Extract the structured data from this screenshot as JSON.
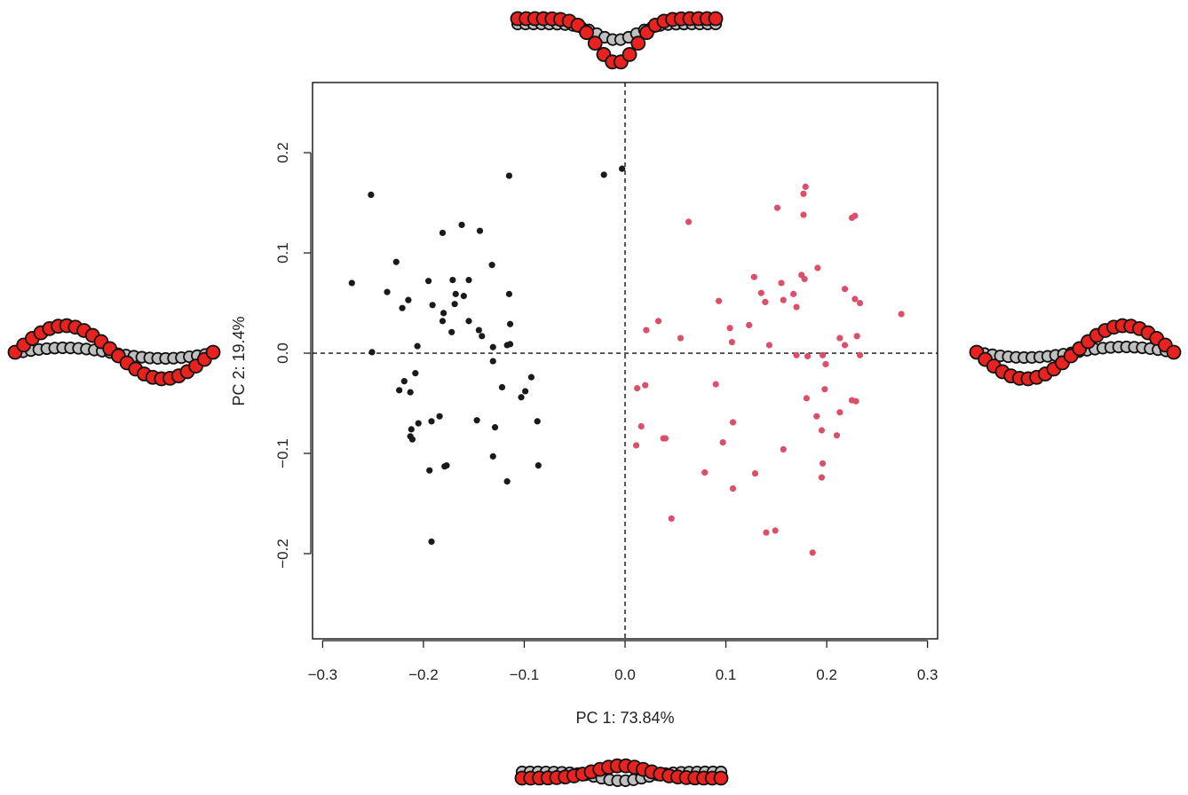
{
  "chart_data": {
    "type": "scatter",
    "title": "",
    "xlabel": "PC 1: 73.84%",
    "ylabel": "PC 2: 19.4%",
    "xlim": [
      -0.31,
      0.31
    ],
    "ylim": [
      -0.285,
      0.27
    ],
    "xticks": [
      -0.3,
      -0.2,
      -0.1,
      0.0,
      0.1,
      0.2,
      0.3
    ],
    "xtick_labels": [
      "−0.3",
      "−0.2",
      "−0.1",
      "0.0",
      "0.1",
      "0.2",
      "0.3"
    ],
    "yticks": [
      -0.2,
      -0.1,
      0.0,
      0.1,
      0.2
    ],
    "ytick_labels": [
      "−0.2",
      "−0.1",
      "0.0",
      "0.1",
      "0.2"
    ],
    "reference_lines": {
      "x": 0,
      "y": 0,
      "style": "dashed"
    },
    "grid": false,
    "legend": "none",
    "series": [
      {
        "color": "#1a1a1a",
        "points": [
          [
            -0.252,
            0.158
          ],
          [
            -0.271,
            0.07
          ],
          [
            -0.236,
            0.061
          ],
          [
            -0.227,
            0.091
          ],
          [
            -0.251,
            0.001
          ],
          [
            -0.221,
            0.045
          ],
          [
            -0.215,
            0.053
          ],
          [
            -0.224,
            -0.037
          ],
          [
            -0.219,
            -0.028
          ],
          [
            -0.213,
            -0.039
          ],
          [
            -0.212,
            -0.076
          ],
          [
            -0.213,
            -0.083
          ],
          [
            -0.211,
            -0.086
          ],
          [
            -0.206,
            0.007
          ],
          [
            -0.208,
            -0.02
          ],
          [
            -0.205,
            -0.07
          ],
          [
            -0.195,
            0.072
          ],
          [
            -0.191,
            0.048
          ],
          [
            -0.194,
            -0.117
          ],
          [
            -0.192,
            -0.188
          ],
          [
            -0.192,
            -0.068
          ],
          [
            -0.181,
            0.12
          ],
          [
            -0.18,
            0.04
          ],
          [
            -0.181,
            0.032
          ],
          [
            -0.184,
            -0.063
          ],
          [
            -0.179,
            -0.113
          ],
          [
            -0.177,
            -0.112
          ],
          [
            -0.171,
            0.073
          ],
          [
            -0.168,
            0.059
          ],
          [
            -0.169,
            0.049
          ],
          [
            -0.172,
            0.021
          ],
          [
            -0.162,
            0.128
          ],
          [
            -0.16,
            0.057
          ],
          [
            -0.155,
            0.073
          ],
          [
            -0.155,
            0.032
          ],
          [
            -0.144,
            0.122
          ],
          [
            -0.145,
            0.023
          ],
          [
            -0.142,
            0.017
          ],
          [
            -0.147,
            -0.067
          ],
          [
            -0.132,
            0.088
          ],
          [
            -0.131,
            0.006
          ],
          [
            -0.131,
            -0.008
          ],
          [
            -0.129,
            -0.074
          ],
          [
            -0.131,
            -0.103
          ],
          [
            -0.122,
            -0.034
          ],
          [
            -0.117,
            0.008
          ],
          [
            -0.115,
            0.177
          ],
          [
            -0.115,
            0.059
          ],
          [
            -0.114,
            0.029
          ],
          [
            -0.114,
            0.009
          ],
          [
            -0.117,
            -0.128
          ],
          [
            -0.103,
            -0.044
          ],
          [
            -0.099,
            -0.038
          ],
          [
            -0.093,
            -0.024
          ],
          [
            -0.087,
            -0.068
          ],
          [
            -0.086,
            -0.112
          ],
          [
            -0.021,
            0.178
          ],
          [
            -0.003,
            0.184
          ]
        ]
      },
      {
        "color": "#dc4f6a",
        "points": [
          [
            0.063,
            0.131
          ],
          [
            0.151,
            0.145
          ],
          [
            0.179,
            0.166
          ],
          [
            0.177,
            0.159
          ],
          [
            0.177,
            0.138
          ],
          [
            0.228,
            0.137
          ],
          [
            0.225,
            0.135
          ],
          [
            0.128,
            0.076
          ],
          [
            0.135,
            0.06
          ],
          [
            0.139,
            0.051
          ],
          [
            0.155,
            0.07
          ],
          [
            0.157,
            0.053
          ],
          [
            0.167,
            0.059
          ],
          [
            0.175,
            0.078
          ],
          [
            0.178,
            0.074
          ],
          [
            0.17,
            0.046
          ],
          [
            0.191,
            0.085
          ],
          [
            0.218,
            0.064
          ],
          [
            0.228,
            0.054
          ],
          [
            0.233,
            0.05
          ],
          [
            0.274,
            0.039
          ],
          [
            0.093,
            0.052
          ],
          [
            0.104,
            0.025
          ],
          [
            0.106,
            0.011
          ],
          [
            0.123,
            0.028
          ],
          [
            0.033,
            0.032
          ],
          [
            0.021,
            0.023
          ],
          [
            0.055,
            0.015
          ],
          [
            0.143,
            0.008
          ],
          [
            0.17,
            -0.002
          ],
          [
            0.181,
            -0.003
          ],
          [
            0.196,
            -0.002
          ],
          [
            0.199,
            -0.011
          ],
          [
            0.213,
            0.015
          ],
          [
            0.218,
            0.008
          ],
          [
            0.23,
            0.017
          ],
          [
            0.233,
            -0.002
          ],
          [
            0.012,
            -0.035
          ],
          [
            0.02,
            -0.032
          ],
          [
            0.09,
            -0.031
          ],
          [
            0.18,
            -0.045
          ],
          [
            0.198,
            -0.036
          ],
          [
            0.19,
            -0.063
          ],
          [
            0.213,
            -0.059
          ],
          [
            0.225,
            -0.047
          ],
          [
            0.229,
            -0.048
          ],
          [
            0.016,
            -0.073
          ],
          [
            0.038,
            -0.085
          ],
          [
            0.04,
            -0.085
          ],
          [
            0.011,
            -0.092
          ],
          [
            0.107,
            -0.069
          ],
          [
            0.097,
            -0.089
          ],
          [
            0.195,
            -0.077
          ],
          [
            0.21,
            -0.082
          ],
          [
            0.079,
            -0.119
          ],
          [
            0.107,
            -0.135
          ],
          [
            0.129,
            -0.12
          ],
          [
            0.157,
            -0.096
          ],
          [
            0.196,
            -0.11
          ],
          [
            0.195,
            -0.124
          ],
          [
            0.046,
            -0.165
          ],
          [
            0.14,
            -0.179
          ],
          [
            0.149,
            -0.177
          ],
          [
            0.186,
            -0.199
          ]
        ]
      }
    ]
  },
  "outline_panels": {
    "top": {
      "fill": "#e8231f",
      "stroke": "#111111",
      "grey": "#c0c0c0"
    },
    "bottom": {
      "fill": "#e8231f",
      "stroke": "#111111",
      "grey": "#c0c0c0"
    },
    "left": {
      "fill": "#e8231f",
      "stroke": "#111111",
      "grey": "#c0c0c0"
    },
    "right": {
      "fill": "#e8231f",
      "stroke": "#111111",
      "grey": "#c0c0c0"
    }
  }
}
